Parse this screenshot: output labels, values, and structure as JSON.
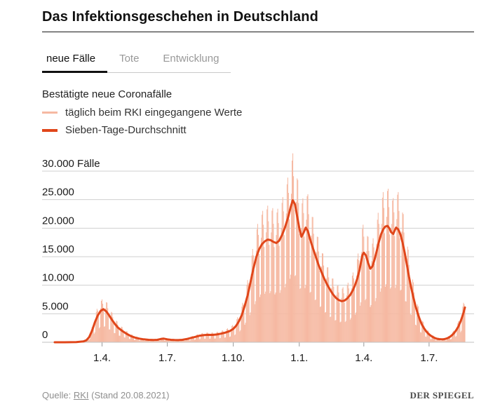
{
  "page": {
    "title": "Das Infektionsgeschehen in Deutschland"
  },
  "tabs": [
    {
      "label": "neue Fälle",
      "active": true
    },
    {
      "label": "Tote",
      "active": false
    },
    {
      "label": "Entwicklung",
      "active": false
    }
  ],
  "legend": {
    "heading": "Bestätigte neue Coronafälle",
    "items": [
      {
        "label": "täglich beim RKI eingegangene Werte",
        "color": "#f6b9a2"
      },
      {
        "label": "Sieben-Tage-Durchschnitt",
        "color": "#e0461a"
      }
    ]
  },
  "footer": {
    "source_prefix": "Quelle:",
    "source_link": "RKI",
    "source_suffix": " (Stand 20.08.2021)",
    "brand": "DER SPIEGEL"
  },
  "chart_data": {
    "type": "bar+line",
    "title": "Bestätigte neue Coronafälle",
    "x_unit": "days (timeline late Jan 2020 – 20.08.2021)",
    "ylabel": "Fälle",
    "ylim": [
      0,
      33500
    ],
    "grid": true,
    "legend_position": "top",
    "x_range_days": [
      0,
      572
    ],
    "x_ticks": [
      {
        "day": 66,
        "label": "1.4."
      },
      {
        "day": 157,
        "label": "1.7."
      },
      {
        "day": 249,
        "label": "1.10."
      },
      {
        "day": 341,
        "label": "1.1."
      },
      {
        "day": 431,
        "label": "1.4."
      },
      {
        "day": 522,
        "label": "1.7."
      }
    ],
    "y_ticks": [
      {
        "value": 0,
        "label": "0"
      },
      {
        "value": 5000,
        "label": "5.000"
      },
      {
        "value": 10000,
        "label": "10.000"
      },
      {
        "value": 15000,
        "label": "15.000"
      },
      {
        "value": 20000,
        "label": "20.000"
      },
      {
        "value": 25000,
        "label": "25.000"
      },
      {
        "value": 30000,
        "label": "30.000 Fälle"
      }
    ],
    "series": [
      {
        "name": "täglich beim RKI eingegangene Werte",
        "type": "bar",
        "color": "#f6b9a2",
        "weekly_pattern": [
          0.5,
          1.08,
          1.3,
          1.33,
          1.18,
          0.95,
          0.48
        ]
      },
      {
        "name": "Sieben-Tage-Durchschnitt",
        "type": "line",
        "color": "#e0461a",
        "points": [
          [
            0,
            0
          ],
          [
            14,
            5
          ],
          [
            30,
            40
          ],
          [
            40,
            150
          ],
          [
            44,
            350
          ],
          [
            48,
            900
          ],
          [
            52,
            2000
          ],
          [
            56,
            3500
          ],
          [
            60,
            4700
          ],
          [
            64,
            5500
          ],
          [
            68,
            5800
          ],
          [
            72,
            5400
          ],
          [
            76,
            4700
          ],
          [
            80,
            3900
          ],
          [
            84,
            3200
          ],
          [
            88,
            2600
          ],
          [
            94,
            2000
          ],
          [
            100,
            1500
          ],
          [
            106,
            1100
          ],
          [
            112,
            820
          ],
          [
            118,
            640
          ],
          [
            124,
            520
          ],
          [
            131,
            430
          ],
          [
            138,
            390
          ],
          [
            143,
            430
          ],
          [
            148,
            580
          ],
          [
            152,
            640
          ],
          [
            157,
            520
          ],
          [
            162,
            430
          ],
          [
            167,
            395
          ],
          [
            172,
            385
          ],
          [
            178,
            430
          ],
          [
            184,
            560
          ],
          [
            190,
            760
          ],
          [
            196,
            950
          ],
          [
            202,
            1150
          ],
          [
            208,
            1250
          ],
          [
            214,
            1300
          ],
          [
            220,
            1290
          ],
          [
            226,
            1360
          ],
          [
            232,
            1510
          ],
          [
            238,
            1700
          ],
          [
            244,
            1960
          ],
          [
            249,
            2350
          ],
          [
            253,
            2900
          ],
          [
            257,
            3700
          ],
          [
            261,
            4800
          ],
          [
            265,
            6400
          ],
          [
            269,
            8200
          ],
          [
            273,
            10500
          ],
          [
            277,
            12900
          ],
          [
            281,
            14900
          ],
          [
            285,
            16300
          ],
          [
            289,
            17200
          ],
          [
            293,
            17700
          ],
          [
            297,
            18000
          ],
          [
            301,
            17900
          ],
          [
            305,
            17600
          ],
          [
            309,
            17400
          ],
          [
            313,
            17800
          ],
          [
            317,
            18800
          ],
          [
            321,
            20100
          ],
          [
            325,
            21700
          ],
          [
            329,
            23700
          ],
          [
            332,
            24900
          ],
          [
            335,
            24200
          ],
          [
            338,
            22100
          ],
          [
            341,
            20000
          ],
          [
            344,
            18500
          ],
          [
            347,
            19200
          ],
          [
            350,
            20100
          ],
          [
            353,
            19500
          ],
          [
            356,
            18100
          ],
          [
            360,
            16500
          ],
          [
            364,
            15000
          ],
          [
            368,
            13500
          ],
          [
            372,
            12300
          ],
          [
            376,
            11100
          ],
          [
            380,
            10100
          ],
          [
            384,
            9200
          ],
          [
            388,
            8400
          ],
          [
            392,
            7800
          ],
          [
            396,
            7400
          ],
          [
            400,
            7200
          ],
          [
            404,
            7300
          ],
          [
            408,
            7700
          ],
          [
            412,
            8300
          ],
          [
            416,
            9200
          ],
          [
            419,
            10100
          ],
          [
            422,
            11200
          ],
          [
            425,
            12700
          ],
          [
            427,
            14000
          ],
          [
            429,
            15300
          ],
          [
            431,
            15700
          ],
          [
            434,
            15200
          ],
          [
            437,
            13900
          ],
          [
            440,
            12900
          ],
          [
            443,
            13300
          ],
          [
            446,
            14500
          ],
          [
            449,
            16000
          ],
          [
            452,
            17600
          ],
          [
            455,
            18900
          ],
          [
            458,
            19800
          ],
          [
            461,
            20300
          ],
          [
            464,
            20400
          ],
          [
            467,
            19900
          ],
          [
            469,
            19300
          ],
          [
            472,
            19000
          ],
          [
            474,
            19600
          ],
          [
            476,
            20100
          ],
          [
            479,
            19800
          ],
          [
            482,
            18900
          ],
          [
            485,
            17500
          ],
          [
            488,
            15700
          ],
          [
            491,
            13600
          ],
          [
            494,
            11500
          ],
          [
            497,
            9600
          ],
          [
            500,
            7900
          ],
          [
            503,
            6400
          ],
          [
            506,
            5100
          ],
          [
            509,
            4000
          ],
          [
            512,
            3100
          ],
          [
            515,
            2450
          ],
          [
            518,
            1900
          ],
          [
            521,
            1500
          ],
          [
            524,
            1180
          ],
          [
            527,
            930
          ],
          [
            530,
            750
          ],
          [
            533,
            620
          ],
          [
            536,
            550
          ],
          [
            539,
            515
          ],
          [
            542,
            530
          ],
          [
            545,
            600
          ],
          [
            548,
            740
          ],
          [
            551,
            950
          ],
          [
            554,
            1250
          ],
          [
            557,
            1650
          ],
          [
            560,
            2150
          ],
          [
            563,
            2800
          ],
          [
            566,
            3700
          ],
          [
            568,
            4400
          ],
          [
            570,
            5200
          ],
          [
            572,
            6100
          ]
        ]
      }
    ]
  }
}
